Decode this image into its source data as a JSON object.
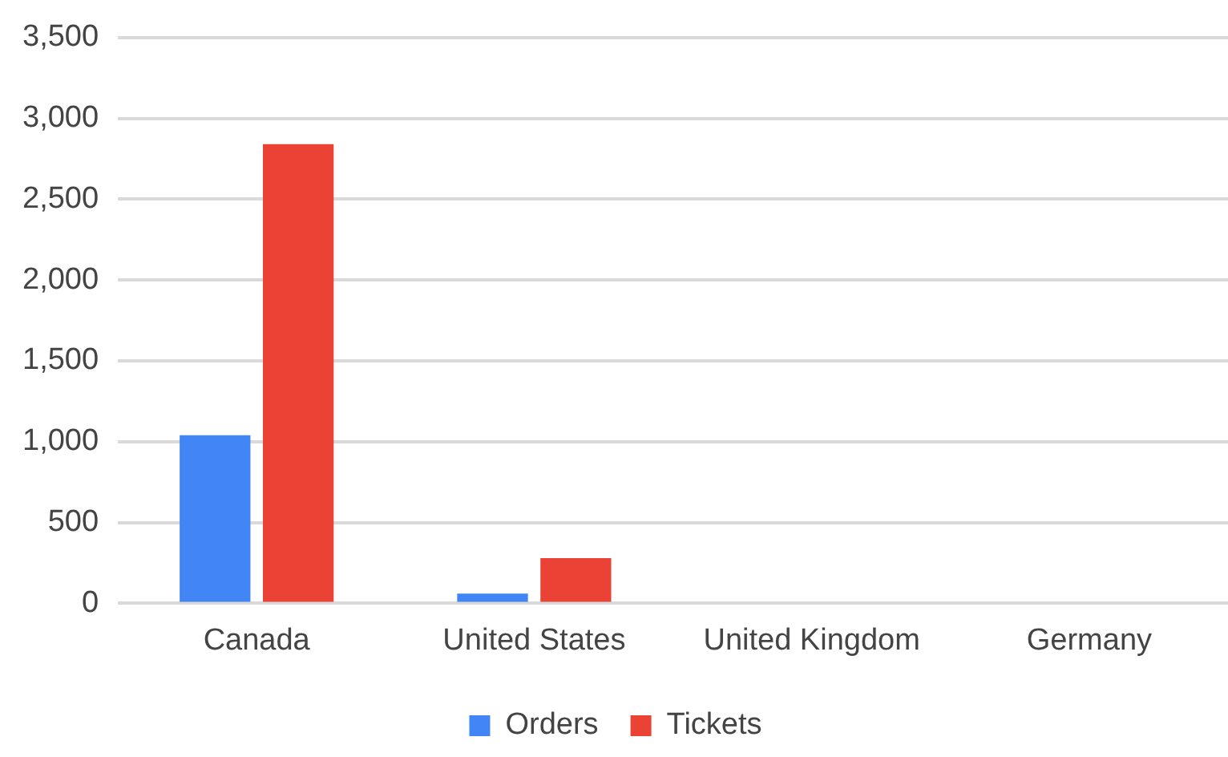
{
  "chart_data": {
    "type": "bar",
    "categories": [
      "Canada",
      "United States",
      "United Kingdom",
      "Germany"
    ],
    "series": [
      {
        "name": "Orders",
        "color": "#4285f4",
        "values": [
          1040,
          60,
          0,
          0
        ]
      },
      {
        "name": "Tickets",
        "color": "#ea4335",
        "values": [
          2840,
          280,
          0,
          0
        ]
      }
    ],
    "ylim": [
      0,
      3500
    ],
    "yticks": [
      {
        "value": 0,
        "label": "0"
      },
      {
        "value": 500,
        "label": "500"
      },
      {
        "value": 1000,
        "label": "1,000"
      },
      {
        "value": 1500,
        "label": "1,500"
      },
      {
        "value": 2000,
        "label": "2,000"
      },
      {
        "value": 2500,
        "label": "2,500"
      },
      {
        "value": 3000,
        "label": "3,000"
      },
      {
        "value": 3500,
        "label": "3,500"
      }
    ],
    "grid": "y",
    "legend": "bottom"
  }
}
